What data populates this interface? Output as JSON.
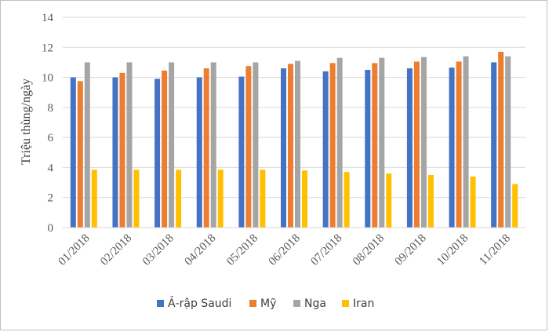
{
  "chart_data": {
    "type": "bar",
    "ylabel": "Triệu thùng/ngày",
    "xlabel": "",
    "ylim": [
      0,
      14
    ],
    "yticks": [
      "0",
      "2",
      "4",
      "6",
      "8",
      "10",
      "12",
      "14"
    ],
    "grid": true,
    "legend_position": "bottom",
    "categories": [
      "01/2018",
      "02/2018",
      "03/2018",
      "04/2018",
      "05/2018",
      "06/2018",
      "07/2018",
      "08/2018",
      "09/2018",
      "10/2018",
      "11/2018"
    ],
    "series": [
      {
        "name": "Ả-rập Saudi",
        "color": "#4472c4",
        "values": [
          10.0,
          10.0,
          9.9,
          10.0,
          10.05,
          10.6,
          10.4,
          10.5,
          10.6,
          10.65,
          11.0
        ]
      },
      {
        "name": "Mỹ",
        "color": "#ed7d31",
        "values": [
          9.75,
          10.3,
          10.45,
          10.6,
          10.75,
          10.9,
          10.95,
          10.95,
          11.05,
          11.05,
          11.7
        ]
      },
      {
        "name": "Nga",
        "color": "#a5a5a5",
        "values": [
          11.0,
          11.0,
          11.0,
          11.0,
          11.0,
          11.1,
          11.3,
          11.3,
          11.35,
          11.4,
          11.4
        ]
      },
      {
        "name": "Iran",
        "color": "#ffc000",
        "values": [
          3.85,
          3.85,
          3.85,
          3.85,
          3.85,
          3.8,
          3.7,
          3.6,
          3.5,
          3.4,
          2.9
        ]
      }
    ]
  }
}
